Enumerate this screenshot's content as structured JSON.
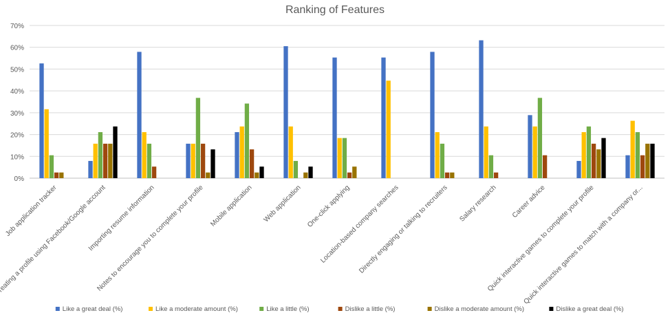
{
  "chart_data": {
    "type": "bar",
    "title": "Ranking of Features",
    "xlabel": "",
    "ylabel": "",
    "ylim": [
      0,
      70
    ],
    "yticks": [
      "0%",
      "10%",
      "20%",
      "30%",
      "40%",
      "50%",
      "60%",
      "70%"
    ],
    "grid": "horizontal",
    "legend_position": "bottom",
    "categories": [
      "Job application tracker",
      "Creating a profile using Facebook/Google account",
      "Importing resume information",
      "Notes to encourage you to complete your profile",
      "Mobile application",
      "Web application",
      "One-click applying",
      "Location-based company searches",
      "Directly engaging or talking to recruiters",
      "Salary research",
      "Career advice",
      "Quick interactive games to complete your profile",
      "Quick interactive games to match with a company or..."
    ],
    "series": [
      {
        "name": "Like a great deal (%)",
        "color": "#4472C4",
        "values": [
          52.6,
          7.9,
          57.9,
          15.8,
          21.1,
          60.5,
          55.3,
          55.3,
          57.9,
          63.2,
          28.9,
          7.9,
          10.5
        ]
      },
      {
        "name": "Like a moderate amount (%)",
        "color": "#FFC000",
        "values": [
          31.6,
          15.8,
          21.1,
          15.8,
          23.7,
          23.7,
          18.4,
          44.7,
          21.1,
          23.7,
          23.7,
          21.1,
          26.3
        ]
      },
      {
        "name": "Like a little (%)",
        "color": "#70AD47",
        "values": [
          10.5,
          21.1,
          15.8,
          36.8,
          34.2,
          7.9,
          18.4,
          0,
          15.8,
          10.5,
          36.8,
          23.7,
          21.1
        ]
      },
      {
        "name": "Dislike a little (%)",
        "color": "#9E480E",
        "values": [
          2.6,
          15.8,
          5.3,
          15.8,
          13.2,
          0,
          2.6,
          0,
          2.6,
          2.6,
          10.5,
          15.8,
          10.5
        ]
      },
      {
        "name": "Dislike a moderate amount (%)",
        "color": "#997300",
        "values": [
          2.6,
          15.8,
          0,
          2.6,
          2.6,
          2.6,
          5.3,
          0,
          2.6,
          0,
          0,
          13.2,
          15.8
        ]
      },
      {
        "name": "Dislike a great deal (%)",
        "color": "#000000",
        "values": [
          0,
          23.7,
          0,
          13.2,
          5.3,
          5.3,
          0,
          0,
          0,
          0,
          0,
          18.4,
          15.8
        ]
      }
    ]
  }
}
